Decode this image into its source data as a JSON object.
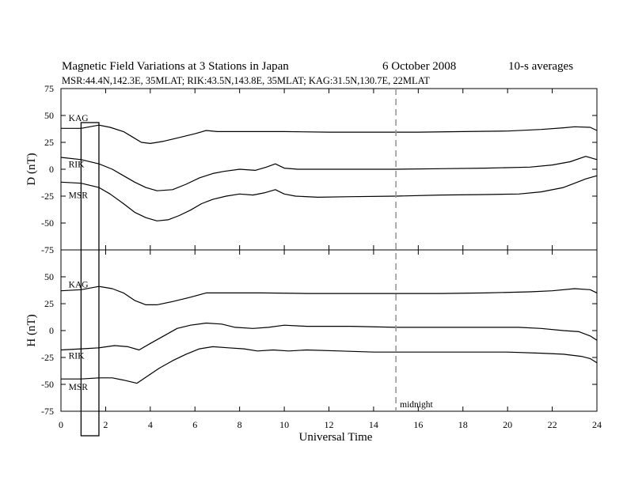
{
  "chart_data": {
    "type": "line",
    "title": "Magnetic Field Variations at 3 Stations in Japan",
    "date": "6   October 2008",
    "averaging": "10-s averages",
    "subtitle": "MSR:44.4N,142.3E, 35MLAT;  RIK:43.5N,143.8E, 35MLAT;  KAG:31.5N,130.7E, 22MLAT",
    "xlabel": "Universal Time",
    "xlim": [
      0,
      24
    ],
    "xticks": [
      0,
      2,
      4,
      6,
      8,
      10,
      12,
      14,
      16,
      18,
      20,
      22,
      24
    ],
    "xtick_labels": [
      "0",
      "2",
      "4",
      "6",
      "8",
      "10",
      "12",
      "14",
      "16",
      "18",
      "20",
      "22",
      "24"
    ],
    "marker": {
      "label": "midnight",
      "x": 15
    },
    "highlight_box": {
      "x": [
        0.9,
        1.7
      ]
    },
    "panels": [
      {
        "ylabel": "D (nT)",
        "ylim": [
          -75,
          75
        ],
        "yticks": [
          75,
          50,
          25,
          0,
          -25,
          -50,
          -75
        ],
        "ytick_labels": [
          "75",
          "50",
          "25",
          "0",
          "-25",
          "-50",
          "-75"
        ],
        "series": [
          {
            "name": "KAG",
            "label_pos": [
              0.2,
              45
            ],
            "x": [
              0,
              0.9,
              1.7,
              2.2,
              2.8,
              3.2,
              3.6,
              4.0,
              4.6,
              5.2,
              6.0,
              6.5,
              7.0,
              8.0,
              10.0,
              12.0,
              14.0,
              16.0,
              18.0,
              20.0,
              21.5,
              22.5,
              23.0,
              23.7,
              24.0
            ],
            "y": [
              38,
              38,
              41,
              39,
              35,
              30,
              25,
              24,
              26,
              29,
              33,
              36,
              35,
              35,
              35,
              34.5,
              34.5,
              34.5,
              35,
              35.5,
              37,
              38.5,
              39.5,
              39,
              36
            ]
          },
          {
            "name": "RIK",
            "label_pos": [
              0.2,
              2
            ],
            "x": [
              0,
              0.9,
              1.7,
              2.3,
              2.8,
              3.3,
              3.8,
              4.3,
              5.0,
              5.6,
              6.2,
              6.8,
              7.3,
              8.0,
              8.7,
              9.2,
              9.6,
              10.0,
              10.6,
              11.5,
              13.0,
              15.0,
              17.0,
              19.0,
              21.0,
              22.0,
              22.8,
              23.5,
              24.0
            ],
            "y": [
              11,
              9,
              5,
              0,
              -6,
              -12,
              -17,
              -20,
              -19,
              -14,
              -8,
              -4,
              -2,
              0,
              -1,
              2,
              5,
              1,
              0,
              0,
              0,
              0,
              0.5,
              1,
              2,
              4,
              7,
              12,
              9
            ]
          },
          {
            "name": "MSR",
            "label_pos": [
              0.2,
              -27
            ],
            "x": [
              0,
              0.9,
              1.7,
              2.2,
              2.8,
              3.3,
              3.8,
              4.3,
              4.8,
              5.3,
              5.8,
              6.3,
              6.8,
              7.4,
              8.0,
              8.6,
              9.1,
              9.6,
              10.0,
              10.5,
              11.5,
              13.0,
              15.0,
              17.0,
              19.0,
              20.5,
              21.5,
              22.5,
              23.0,
              23.5,
              24.0
            ],
            "y": [
              -12,
              -13,
              -17,
              -23,
              -32,
              -40,
              -45,
              -48,
              -47,
              -43,
              -38,
              -32,
              -28,
              -25,
              -23,
              -24,
              -22,
              -19,
              -23,
              -25,
              -26,
              -25.5,
              -25,
              -24,
              -23.5,
              -23,
              -21,
              -17,
              -13,
              -9,
              -6
            ]
          }
        ]
      },
      {
        "ylabel": "H (nT)",
        "ylim": [
          -75,
          75
        ],
        "yticks": [
          75,
          50,
          25,
          0,
          -25,
          -50,
          -75
        ],
        "ytick_labels": [
          "75",
          "50",
          "25",
          "0",
          "-25",
          "-50",
          "-75"
        ],
        "series": [
          {
            "name": "KAG",
            "label_pos": [
              0.2,
              40
            ],
            "x": [
              0,
              0.9,
              1.7,
              2.3,
              2.8,
              3.3,
              3.8,
              4.3,
              5.0,
              5.8,
              6.5,
              7.5,
              9.0,
              11.0,
              13.0,
              15.0,
              17.0,
              19.0,
              21.0,
              22.0,
              23.0,
              23.7,
              24.0
            ],
            "y": [
              37,
              38,
              41,
              39,
              35,
              28,
              24,
              24,
              27,
              31,
              35,
              35,
              35,
              34.5,
              34.5,
              34.5,
              34.5,
              35,
              36,
              37,
              39,
              38,
              35
            ]
          },
          {
            "name": "RIK",
            "label_pos": [
              0.2,
              -26
            ],
            "x": [
              0,
              0.9,
              1.7,
              2.4,
              3.0,
              3.5,
              4.0,
              4.6,
              5.2,
              5.8,
              6.5,
              7.2,
              7.8,
              8.6,
              9.3,
              10.0,
              11.0,
              13.0,
              15.0,
              17.0,
              19.0,
              20.5,
              21.5,
              22.5,
              23.2,
              23.7,
              24.0
            ],
            "y": [
              -18,
              -17,
              -16,
              -14,
              -15,
              -18,
              -12,
              -5,
              2,
              5,
              7,
              6,
              3,
              2,
              3,
              5,
              4,
              4,
              3,
              3,
              3,
              3,
              2,
              0,
              -1,
              -5,
              -9
            ]
          },
          {
            "name": "MSR",
            "label_pos": [
              0.2,
              -55
            ],
            "x": [
              0,
              0.9,
              1.7,
              2.3,
              2.8,
              3.4,
              3.9,
              4.4,
              5.0,
              5.6,
              6.2,
              6.8,
              7.5,
              8.2,
              8.8,
              9.5,
              10.2,
              11.0,
              12.5,
              14.0,
              16.0,
              18.0,
              20.0,
              21.5,
              22.5,
              23.3,
              23.7,
              24.0
            ],
            "y": [
              -45,
              -45,
              -44,
              -44,
              -46,
              -49,
              -42,
              -35,
              -28,
              -22,
              -17,
              -15,
              -16,
              -17,
              -19,
              -18,
              -19,
              -18,
              -19,
              -20,
              -20,
              -20,
              -20,
              -21,
              -22,
              -24,
              -26,
              -30
            ]
          }
        ]
      }
    ]
  }
}
